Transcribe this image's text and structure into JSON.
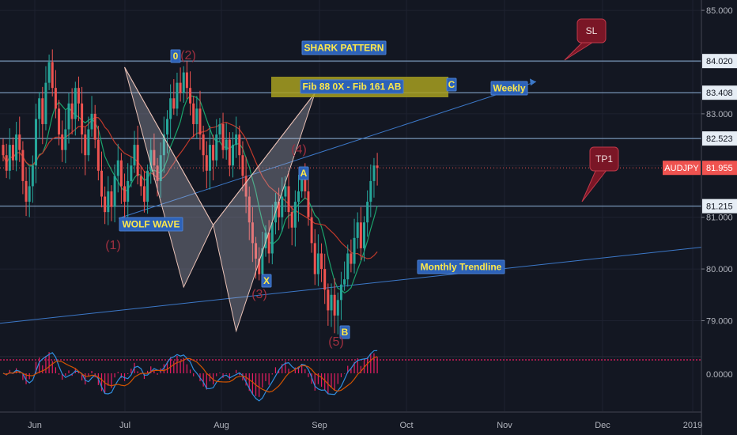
{
  "chart_data": {
    "type": "candlestick",
    "symbol": "AUDJPY",
    "y_range": [
      78.35,
      85.2
    ],
    "y_ticks": [
      {
        "value": 85.0,
        "label": "85.000"
      },
      {
        "value": 84.02,
        "label": "84.020"
      },
      {
        "value": 83.408,
        "label": "83.408"
      },
      {
        "value": 83.0,
        "label": "83.000"
      },
      {
        "value": 82.523,
        "label": "82.523"
      },
      {
        "value": 81.955,
        "label": "81.955"
      },
      {
        "value": 81.215,
        "label": "81.215"
      },
      {
        "value": 81.0,
        "label": "81.000"
      },
      {
        "value": 80.0,
        "label": "80.000"
      },
      {
        "value": 79.0,
        "label": "79.000"
      }
    ],
    "x_ticks": [
      "Jun",
      "Jul",
      "Aug",
      "Sep",
      "Oct",
      "Nov",
      "Dec",
      "2019"
    ],
    "horizontal_levels": [
      84.02,
      83.408,
      82.523,
      81.215
    ],
    "current_price": {
      "value": 81.955,
      "label": "81.955",
      "symbol_label": "AUDJPY"
    },
    "close": [
      82.2,
      81.9,
      82.4,
      82.1,
      82.6,
      82.3,
      81.7,
      81.3,
      81.6,
      82.0,
      82.9,
      83.3,
      82.8,
      83.6,
      84.0,
      83.5,
      83.1,
      82.6,
      82.3,
      82.7,
      83.2,
      82.9,
      83.5,
      83.2,
      82.6,
      82.2,
      82.7,
      83.0,
      82.5,
      81.9,
      81.4,
      81.1,
      81.5,
      81.2,
      81.8,
      82.1,
      81.6,
      81.3,
      81.7,
      82.0,
      82.4,
      81.8,
      81.6,
      81.3,
      81.9,
      82.3,
      82.0,
      81.7,
      82.2,
      82.6,
      82.9,
      83.3,
      83.1,
      83.6,
      83.4,
      83.8,
      83.5,
      83.2,
      82.8,
      83.1,
      82.6,
      82.2,
      81.9,
      82.4,
      82.1,
      82.6,
      82.8,
      82.3,
      82.5,
      82.0,
      82.4,
      82.6,
      82.2,
      81.8,
      81.4,
      80.9,
      80.5,
      80.2,
      79.9,
      80.4,
      80.7,
      80.3,
      80.9,
      81.3,
      81.0,
      81.4,
      81.6,
      81.1,
      80.8,
      81.3,
      81.5,
      81.8,
      81.5,
      81.0,
      80.5,
      79.9,
      80.3,
      80.0,
      79.6,
      79.2,
      79.5,
      79.1,
      79.4,
      79.7,
      79.8,
      80.3,
      80.1,
      80.6,
      80.9,
      80.4,
      80.9,
      81.3,
      81.7,
      82.0,
      81.955
    ],
    "panel_labels": [
      {
        "text": "SHARK PATTERN"
      },
      {
        "text": "Fib 88 0X - Fib 161 AB"
      },
      {
        "text": "Weekly"
      },
      {
        "text": "WOLF WAVE"
      },
      {
        "text": "Monthly Trendline"
      },
      {
        "text": "SL"
      },
      {
        "text": "TP1"
      }
    ],
    "pattern_points": [
      {
        "label": "0",
        "date_index": 37,
        "price": 83.9
      },
      {
        "label": "X",
        "date_index": 55,
        "price": 79.65
      },
      {
        "label": "A",
        "date_index": 64,
        "price": 80.85
      },
      {
        "label": "B",
        "date_index": 71,
        "price": 78.8
      },
      {
        "label": "C",
        "date_index": 95,
        "price": 83.4
      }
    ],
    "wave_labels": [
      "(1)",
      "(2)",
      "(3)",
      "(4)",
      "(5)"
    ],
    "oscillator": {
      "zero_label": "0.0000"
    }
  }
}
